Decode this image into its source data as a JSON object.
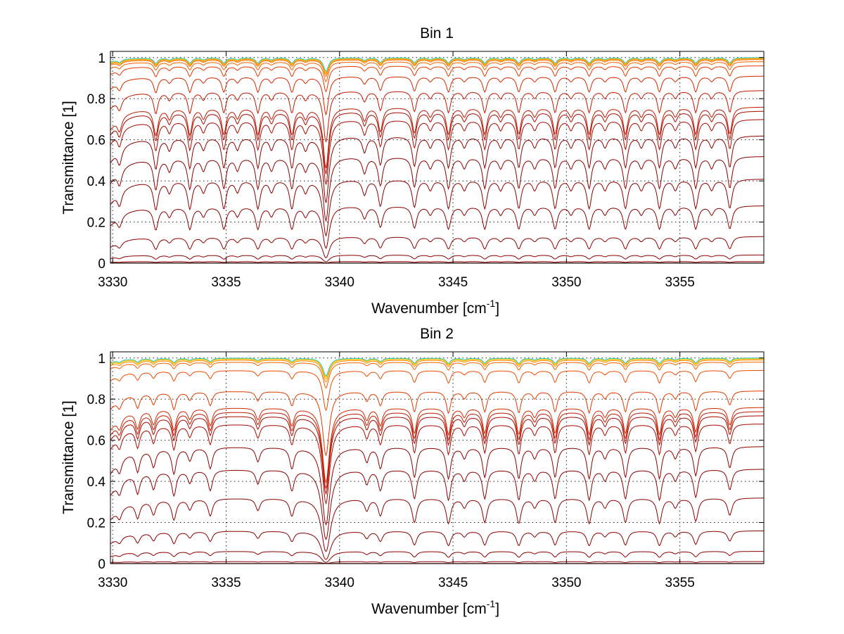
{
  "figure": {
    "background": "#ffffff",
    "line_colors": [
      "#8b0000",
      "#a80a00",
      "#c01800",
      "#d22800",
      "#e23800",
      "#ee4a00",
      "#f46000",
      "#f87400",
      "#fb8a00",
      "#fda000",
      "#ffb400",
      "#ffca00",
      "#e8d800",
      "#a8dc30",
      "#30c8d8"
    ]
  },
  "chart_data": [
    {
      "type": "line",
      "title": "Bin 1",
      "xlabel_main": "Wavenumber [cm",
      "xlabel_sup": "-1",
      "xlabel_end": "]",
      "ylabel": "Transmittance [1]",
      "xlim": [
        3329.9,
        3358.7
      ],
      "ylim": [
        0,
        1.03
      ],
      "xticks": [
        3330,
        3335,
        3340,
        3345,
        3350,
        3355
      ],
      "xtick_labels": [
        "3330",
        "3335",
        "3340",
        "3345",
        "3350",
        "3355"
      ],
      "yticks": [
        0,
        0.2,
        0.4,
        0.6,
        0.8,
        1
      ],
      "ytick_labels": [
        "0",
        "0.2",
        "0.4",
        "0.6",
        "0.8",
        "1"
      ],
      "grid": true,
      "strong_line": {
        "center": 3339.4,
        "depth": 0.62,
        "width": 0.13
      },
      "lines": [
        {
          "center": 3330.3,
          "depth": 0.5
        },
        {
          "center": 3331.9,
          "depth": 0.95
        },
        {
          "center": 3332.5,
          "depth": 0.35
        },
        {
          "center": 3333.4,
          "depth": 0.95
        },
        {
          "center": 3334.0,
          "depth": 0.35
        },
        {
          "center": 3334.9,
          "depth": 0.95
        },
        {
          "center": 3335.5,
          "depth": 0.35
        },
        {
          "center": 3336.4,
          "depth": 0.95
        },
        {
          "center": 3337.0,
          "depth": 0.35
        },
        {
          "center": 3337.9,
          "depth": 0.95
        },
        {
          "center": 3338.5,
          "depth": 0.35
        },
        {
          "center": 3341.1,
          "depth": 0.45
        },
        {
          "center": 3341.8,
          "depth": 0.85
        },
        {
          "center": 3343.3,
          "depth": 0.9
        },
        {
          "center": 3344.0,
          "depth": 0.3
        },
        {
          "center": 3344.8,
          "depth": 0.95
        },
        {
          "center": 3345.5,
          "depth": 0.3
        },
        {
          "center": 3346.4,
          "depth": 0.95
        },
        {
          "center": 3347.1,
          "depth": 0.3
        },
        {
          "center": 3347.9,
          "depth": 0.95
        },
        {
          "center": 3348.6,
          "depth": 0.3
        },
        {
          "center": 3349.5,
          "depth": 0.95
        },
        {
          "center": 3350.2,
          "depth": 0.3
        },
        {
          "center": 3351.0,
          "depth": 0.95
        },
        {
          "center": 3351.7,
          "depth": 0.3
        },
        {
          "center": 3352.6,
          "depth": 0.95
        },
        {
          "center": 3353.3,
          "depth": 0.3
        },
        {
          "center": 3354.1,
          "depth": 0.95
        },
        {
          "center": 3354.8,
          "depth": 0.3
        },
        {
          "center": 3355.7,
          "depth": 0.95
        },
        {
          "center": 3356.4,
          "depth": 0.3
        },
        {
          "center": 3357.2,
          "depth": 0.95
        }
      ],
      "series": [
        {
          "baseline": 0.0
        },
        {
          "baseline": 0.008
        },
        {
          "baseline": 0.04
        },
        {
          "baseline": 0.13
        },
        {
          "baseline": 0.28
        },
        {
          "baseline": 0.41
        },
        {
          "baseline": 0.52
        },
        {
          "baseline": 0.62
        },
        {
          "baseline": 0.7
        },
        {
          "baseline": 0.74
        },
        {
          "baseline": 0.76
        },
        {
          "baseline": 0.84
        },
        {
          "baseline": 0.91
        },
        {
          "baseline": 0.96
        },
        {
          "baseline": 0.98
        },
        {
          "baseline": 0.99
        },
        {
          "baseline": 0.994
        },
        {
          "baseline": 0.997
        },
        {
          "baseline": 0.999
        },
        {
          "baseline": 1.0
        }
      ]
    },
    {
      "type": "line",
      "title": "Bin 2",
      "xlabel_main": "Wavenumber [cm",
      "xlabel_sup": "-1",
      "xlabel_end": "]",
      "ylabel": "Transmittance [1]",
      "xlim": [
        3329.9,
        3358.7
      ],
      "ylim": [
        0,
        1.03
      ],
      "xticks": [
        3330,
        3335,
        3340,
        3345,
        3350,
        3355
      ],
      "xtick_labels": [
        "3330",
        "3335",
        "3340",
        "3345",
        "3350",
        "3355"
      ],
      "yticks": [
        0,
        0.2,
        0.4,
        0.6,
        0.8,
        1
      ],
      "ytick_labels": [
        "0",
        "0.2",
        "0.4",
        "0.6",
        "0.8",
        "1"
      ],
      "grid": true,
      "strong_line": {
        "center": 3339.4,
        "depth": 0.82,
        "width": 0.16
      },
      "lines": [
        {
          "center": 3330.3,
          "depth": 0.4
        },
        {
          "center": 3331.1,
          "depth": 0.6
        },
        {
          "center": 3331.8,
          "depth": 0.5
        },
        {
          "center": 3332.7,
          "depth": 0.75
        },
        {
          "center": 3333.4,
          "depth": 0.35
        },
        {
          "center": 3334.3,
          "depth": 0.6
        },
        {
          "center": 3336.4,
          "depth": 0.4
        },
        {
          "center": 3337.9,
          "depth": 0.6
        },
        {
          "center": 3341.2,
          "depth": 0.4
        },
        {
          "center": 3341.8,
          "depth": 0.6
        },
        {
          "center": 3343.3,
          "depth": 0.9
        },
        {
          "center": 3344.8,
          "depth": 0.95
        },
        {
          "center": 3345.5,
          "depth": 0.3
        },
        {
          "center": 3346.4,
          "depth": 0.9
        },
        {
          "center": 3347.9,
          "depth": 0.95
        },
        {
          "center": 3348.6,
          "depth": 0.3
        },
        {
          "center": 3349.5,
          "depth": 0.9
        },
        {
          "center": 3351.0,
          "depth": 0.95
        },
        {
          "center": 3351.7,
          "depth": 0.3
        },
        {
          "center": 3352.6,
          "depth": 0.9
        },
        {
          "center": 3354.1,
          "depth": 0.95
        },
        {
          "center": 3354.8,
          "depth": 0.3
        },
        {
          "center": 3355.7,
          "depth": 0.85
        },
        {
          "center": 3357.2,
          "depth": 0.6
        }
      ],
      "series": [
        {
          "baseline": 0.0
        },
        {
          "baseline": 0.01
        },
        {
          "baseline": 0.06
        },
        {
          "baseline": 0.16
        },
        {
          "baseline": 0.32
        },
        {
          "baseline": 0.46
        },
        {
          "baseline": 0.57
        },
        {
          "baseline": 0.68
        },
        {
          "baseline": 0.72
        },
        {
          "baseline": 0.74
        },
        {
          "baseline": 0.76
        },
        {
          "baseline": 0.84
        },
        {
          "baseline": 0.94
        },
        {
          "baseline": 0.98
        },
        {
          "baseline": 0.99
        },
        {
          "baseline": 0.995
        },
        {
          "baseline": 0.998
        },
        {
          "baseline": 1.0
        }
      ]
    }
  ]
}
